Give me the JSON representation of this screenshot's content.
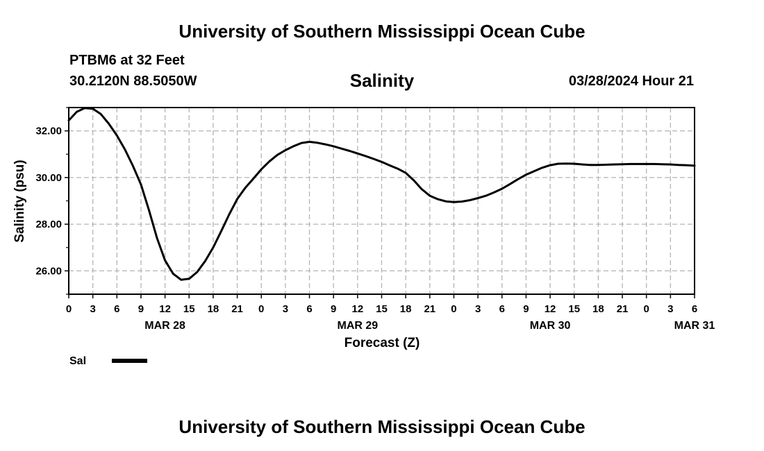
{
  "header": {
    "title": "University of Southern Mississippi Ocean Cube",
    "station": "PTBM6 at 32 Feet",
    "location": "30.2120N  88.5050W",
    "timestamp": "03/28/2024 Hour 21"
  },
  "footer": {
    "title": "University of Southern Mississippi Ocean Cube"
  },
  "chart_data": {
    "type": "line",
    "title": "Salinity",
    "xlabel": "Forecast (Z)",
    "ylabel": "Salinity (psu)",
    "x_unit": "hours",
    "xlim": [
      0,
      78
    ],
    "ylim": [
      25,
      33
    ],
    "yticks": [
      "26.00",
      "28.00",
      "30.00",
      "32.00"
    ],
    "ytick_values": [
      26,
      28,
      30,
      32
    ],
    "xtick_labels": [
      "0",
      "3",
      "6",
      "9",
      "12",
      "15",
      "18",
      "21",
      "0",
      "3",
      "6",
      "9",
      "12",
      "15",
      "18",
      "21",
      "0",
      "3",
      "6",
      "9",
      "12",
      "15",
      "18",
      "21",
      "0",
      "3",
      "6"
    ],
    "date_labels": [
      {
        "hour": 12,
        "label": "MAR 28"
      },
      {
        "hour": 36,
        "label": "MAR 29"
      },
      {
        "hour": 60,
        "label": "MAR 30"
      },
      {
        "hour": 78,
        "label": "MAR 31"
      }
    ],
    "grid": true,
    "legend": "bottom-left",
    "series": [
      {
        "name": "Sal",
        "color": "#000000",
        "x": [
          0,
          1,
          2,
          3,
          4,
          5,
          6,
          7,
          8,
          9,
          10,
          11,
          12,
          13,
          14,
          15,
          16,
          17,
          18,
          19,
          20,
          21,
          22,
          23,
          24,
          25,
          26,
          27,
          28,
          29,
          30,
          31,
          32,
          33,
          34,
          35,
          36,
          37,
          38,
          39,
          40,
          41,
          42,
          43,
          44,
          45,
          46,
          47,
          48,
          49,
          50,
          51,
          52,
          53,
          54,
          55,
          56,
          57,
          58,
          59,
          60,
          61,
          62,
          63,
          64,
          65,
          66,
          67,
          68,
          69,
          70,
          71,
          72,
          73,
          74,
          75,
          76,
          77,
          78
        ],
        "y": [
          32.45,
          32.82,
          32.98,
          32.95,
          32.72,
          32.3,
          31.8,
          31.2,
          30.5,
          29.7,
          28.6,
          27.4,
          26.45,
          25.88,
          25.62,
          25.66,
          25.95,
          26.42,
          27.0,
          27.7,
          28.42,
          29.08,
          29.56,
          29.95,
          30.35,
          30.69,
          30.97,
          31.17,
          31.34,
          31.48,
          31.53,
          31.49,
          31.42,
          31.34,
          31.24,
          31.14,
          31.03,
          30.92,
          30.8,
          30.67,
          30.52,
          30.38,
          30.2,
          29.88,
          29.5,
          29.22,
          29.07,
          28.98,
          28.95,
          28.97,
          29.03,
          29.12,
          29.22,
          29.36,
          29.52,
          29.72,
          29.93,
          30.12,
          30.27,
          30.42,
          30.53,
          30.59,
          30.6,
          30.59,
          30.56,
          30.54,
          30.54,
          30.55,
          30.56,
          30.57,
          30.58,
          30.58,
          30.58,
          30.58,
          30.57,
          30.56,
          30.54,
          30.53,
          30.51
        ]
      }
    ]
  }
}
